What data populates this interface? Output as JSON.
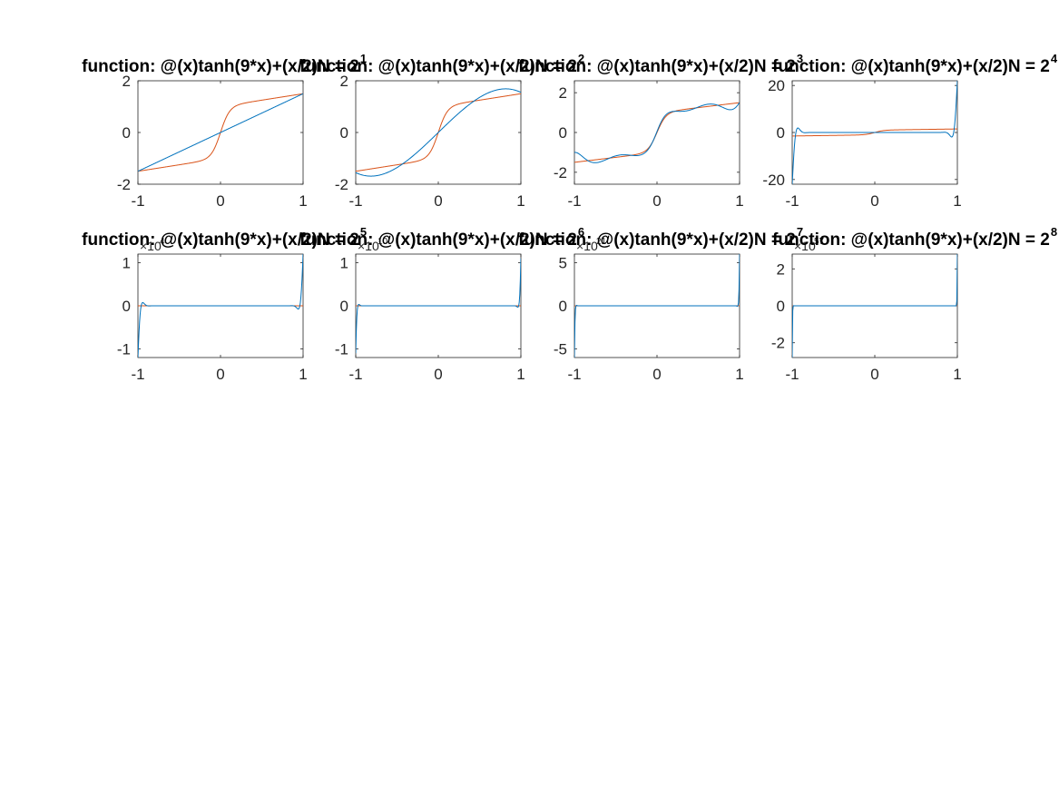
{
  "chart_data": [
    {
      "type": "line",
      "title_prefix": "function: @(x)tanh(9*x)+(x/2)N = 2",
      "title_exp": "1",
      "xlim": [
        -1,
        1
      ],
      "ylim": [
        -2,
        2
      ],
      "xticks": [
        -1,
        0,
        1
      ],
      "yticks": [
        -2,
        0,
        2
      ],
      "exponent_label": "",
      "exponent_power": "",
      "approx": {
        "kind": "poly",
        "coeffs": [
          0,
          1.5
        ],
        "scale": 1
      },
      "series": [
        {
          "color": "#0072BD",
          "role": "interpolant"
        },
        {
          "color": "#D95319",
          "role": "function"
        }
      ]
    },
    {
      "type": "line",
      "title_prefix": "function: @(x)tanh(9*x)+(x/2)N = 2",
      "title_exp": "2",
      "xlim": [
        -1,
        1
      ],
      "ylim": [
        -2,
        2
      ],
      "xticks": [
        -1,
        0,
        1
      ],
      "yticks": [
        -2,
        0,
        2
      ],
      "exponent_label": "",
      "exponent_power": "",
      "approx": {
        "kind": "poly",
        "coeffs": [
          0,
          3.1,
          0,
          -1.55
        ],
        "scale": 1
      },
      "series": [
        {
          "color": "#0072BD",
          "role": "interpolant"
        },
        {
          "color": "#D95319",
          "role": "function"
        }
      ]
    },
    {
      "type": "line",
      "title_prefix": "function: @(x)tanh(9*x)+(x/2)N = 2",
      "title_exp": "3",
      "xlim": [
        -1,
        1
      ],
      "ylim": [
        -2.6,
        2.6
      ],
      "xticks": [
        -1,
        0,
        1
      ],
      "yticks": [
        -2,
        0,
        2
      ],
      "exponent_label": "",
      "exponent_power": "",
      "approx": {
        "kind": "wiggle",
        "base": "f",
        "amp": 0.35,
        "k": 12,
        "edge": 1.3,
        "p": 6
      },
      "series": [
        {
          "color": "#0072BD",
          "role": "interpolant"
        },
        {
          "color": "#D95319",
          "role": "function"
        }
      ]
    },
    {
      "type": "line",
      "title_prefix": "function: @(x)tanh(9*x)+(x/2)N = 2",
      "title_exp": "4",
      "xlim": [
        -1,
        1
      ],
      "ylim": [
        -22,
        22
      ],
      "xticks": [
        -1,
        0,
        1
      ],
      "yticks": [
        -20,
        0,
        20
      ],
      "exponent_label": "",
      "exponent_power": "",
      "approx": {
        "kind": "edge",
        "amp": 22,
        "p": 30,
        "k": 35
      },
      "series": [
        {
          "color": "#0072BD",
          "role": "interpolant"
        },
        {
          "color": "#D95319",
          "role": "function"
        }
      ]
    },
    {
      "type": "line",
      "title_prefix": "function: @(x)tanh(9*x)+(x/2)N = 2",
      "title_exp": "5",
      "xlim": [
        -1,
        1
      ],
      "ylim": [
        -1.2,
        1.2
      ],
      "xticks": [
        -1,
        0,
        1
      ],
      "yticks": [
        -1,
        0,
        1
      ],
      "exponent_label": "×10",
      "exponent_power": "4",
      "approx": {
        "kind": "edge",
        "amp": 1.2,
        "p": 40,
        "k": 40
      },
      "series": [
        {
          "color": "#0072BD",
          "role": "interpolant"
        },
        {
          "color": "#D95319",
          "role": "function"
        }
      ]
    },
    {
      "type": "line",
      "title_prefix": "function: @(x)tanh(9*x)+(x/2)N = 2",
      "title_exp": "6",
      "xlim": [
        -1,
        1
      ],
      "ylim": [
        -1.2,
        1.2
      ],
      "xticks": [
        -1,
        0,
        1
      ],
      "yticks": [
        -1,
        0,
        1
      ],
      "exponent_label": "×10",
      "exponent_power": "10",
      "approx": {
        "kind": "edge",
        "amp": 1.1,
        "p": 80,
        "k": 60
      },
      "series": [
        {
          "color": "#0072BD",
          "role": "interpolant"
        },
        {
          "color": "#D95319",
          "role": "function"
        }
      ]
    },
    {
      "type": "line",
      "title_prefix": "function: @(x)tanh(9*x)+(x/2)N = 2",
      "title_exp": "7",
      "xlim": [
        -1,
        1
      ],
      "ylim": [
        -6,
        6
      ],
      "xticks": [
        -1,
        0,
        1
      ],
      "yticks": [
        -5,
        0,
        5
      ],
      "exponent_label": "×10",
      "exponent_power": "21",
      "approx": {
        "kind": "edge",
        "amp": 6,
        "p": 150,
        "k": 80
      },
      "series": [
        {
          "color": "#0072BD",
          "role": "interpolant"
        },
        {
          "color": "#D95319",
          "role": "function"
        }
      ]
    },
    {
      "type": "line",
      "title_prefix": "function: @(x)tanh(9*x)+(x/2)N = 2",
      "title_exp": "8",
      "xlim": [
        -1,
        1
      ],
      "ylim": [
        -2.8,
        2.8
      ],
      "xticks": [
        -1,
        0,
        1
      ],
      "yticks": [
        -2,
        0,
        2
      ],
      "exponent_label": "×10",
      "exponent_power": "57",
      "approx": {
        "kind": "edge",
        "amp": 2.8,
        "p": 300,
        "k": 120
      },
      "series": [
        {
          "color": "#0072BD",
          "role": "interpolant"
        },
        {
          "color": "#D95319",
          "role": "function"
        }
      ]
    }
  ]
}
